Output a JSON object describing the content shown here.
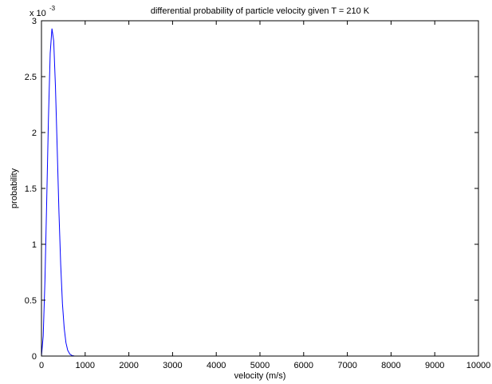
{
  "chart_data": {
    "type": "line",
    "title": "differential probability of particle velocity given T = 210 K",
    "xlabel": "velocity (m/s)",
    "ylabel": "probability",
    "xlim": [
      0,
      10000
    ],
    "ylim": [
      0,
      0.003
    ],
    "y_exponent_label": "x 10",
    "y_exponent_power": "-3",
    "x_ticks": [
      0,
      1000,
      2000,
      3000,
      4000,
      5000,
      6000,
      7000,
      8000,
      9000,
      10000
    ],
    "x_tick_labels": [
      "0",
      "1000",
      "2000",
      "3000",
      "4000",
      "5000",
      "6000",
      "7000",
      "8000",
      "9000",
      "10000"
    ],
    "y_ticks": [
      0,
      0.0005,
      0.001,
      0.0015,
      0.002,
      0.0025,
      0.003
    ],
    "y_tick_labels": [
      "0",
      "0.5",
      "1",
      "1.5",
      "2",
      "2.5",
      "3"
    ],
    "grid": false,
    "series": [
      {
        "color": "#0000ff",
        "x": [
          0,
          40,
          80,
          120,
          160,
          200,
          240,
          280,
          320,
          360,
          400,
          440,
          480,
          520,
          560,
          600,
          650,
          700,
          750,
          800,
          850,
          900,
          1000,
          1200,
          1500,
          1800,
          2000,
          3000,
          4000,
          5000,
          6000,
          7000,
          8000,
          9000,
          10000
        ],
        "y": [
          0,
          0.00018,
          0.00068,
          0.00139,
          0.00213,
          0.00271,
          0.00293,
          0.00282,
          0.00241,
          0.00186,
          0.00129,
          0.00082,
          0.00047,
          0.00025,
          0.00012,
          5.2e-05,
          1.7e-05,
          4.9e-06,
          1.2e-06,
          2.7e-07,
          5e-08,
          0,
          0,
          0,
          0,
          0,
          0,
          0,
          0,
          0,
          0,
          0,
          0,
          0,
          0
        ]
      }
    ]
  }
}
